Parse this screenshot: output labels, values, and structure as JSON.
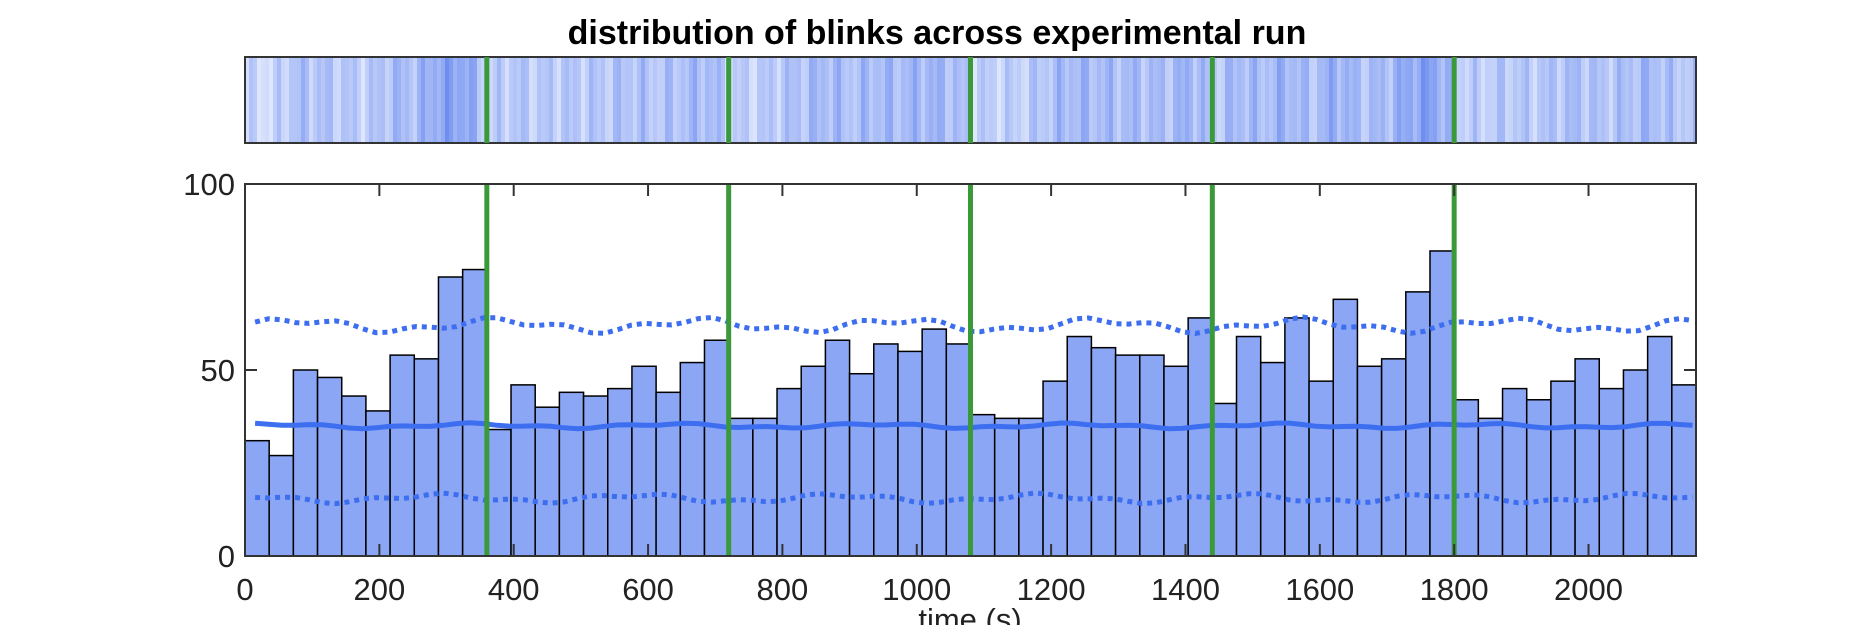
{
  "chart_data": {
    "type": "bar",
    "title": "distribution of blinks across experimental run",
    "xlabel": "time (s)",
    "ylabel": "",
    "xlim": [
      0,
      2160
    ],
    "ylim": [
      0,
      100
    ],
    "xticks": [
      0,
      200,
      400,
      600,
      800,
      1000,
      1200,
      1400,
      1600,
      1800,
      2000
    ],
    "yticks": [
      0,
      50,
      100
    ],
    "bin_width": 36,
    "bin_counts": [
      31,
      27,
      50,
      48,
      43,
      39,
      54,
      53,
      75,
      77,
      34,
      46,
      40,
      44,
      43,
      45,
      51,
      44,
      52,
      58,
      37,
      37,
      45,
      51,
      58,
      49,
      57,
      55,
      61,
      57,
      38,
      37,
      37,
      47,
      59,
      56,
      54,
      54,
      51,
      64,
      41,
      59,
      52,
      64,
      47,
      69,
      51,
      53,
      71,
      82,
      42,
      37,
      45,
      42,
      47,
      53,
      45,
      50,
      59,
      46
    ],
    "run_boundaries": [
      360,
      720,
      1080,
      1440,
      1800
    ],
    "reference_lines": {
      "mean": 35,
      "upper": 62,
      "lower": 15.5
    },
    "colors": {
      "bar_fill": "#8aa6f5",
      "bar_edge": "#000000",
      "run_boundary": "#3a9a3a",
      "reference_line": "#3d6ef0",
      "heatmap_dark": "#6f8ff0",
      "heatmap_light": "#f0f4ff"
    },
    "grid": false,
    "heatmap_strip": {
      "position": "above histogram",
      "encodes": "blink density over time"
    }
  }
}
